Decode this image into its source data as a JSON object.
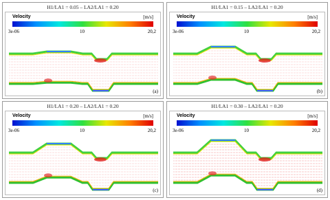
{
  "panels": [
    {
      "title": "H1/LA1 = 0.05 – LA2/LA1 = 0.20",
      "legend": {
        "title": "Velocity",
        "unit": "[m/s]",
        "min_label": "3e-06",
        "mid_label": "10",
        "max_label": "20,2"
      },
      "label": "(a)"
    },
    {
      "title": "H1/LA1 = 0.15 – LA2/LA1 = 0.20",
      "legend": {
        "title": "Velocity",
        "unit": "[m/s]",
        "min_label": "3e-06",
        "mid_label": "10",
        "max_label": "20,2"
      },
      "label": "(b)"
    },
    {
      "title": "H1/LA1 = 0.20 – LA2/LA1 = 0.20",
      "legend": {
        "title": "Velocity",
        "unit": "[m/s]",
        "min_label": "3e-06",
        "mid_label": "10",
        "max_label": "20,2"
      },
      "label": "(c)"
    },
    {
      "title": "H1/LA1 = 0.30 – LA2/LA1 = 0.20",
      "legend": {
        "title": "Velocity",
        "unit": "[m/s]",
        "min_label": "3e-06",
        "mid_label": "10",
        "max_label": "20,2"
      },
      "label": "(d)"
    }
  ]
}
